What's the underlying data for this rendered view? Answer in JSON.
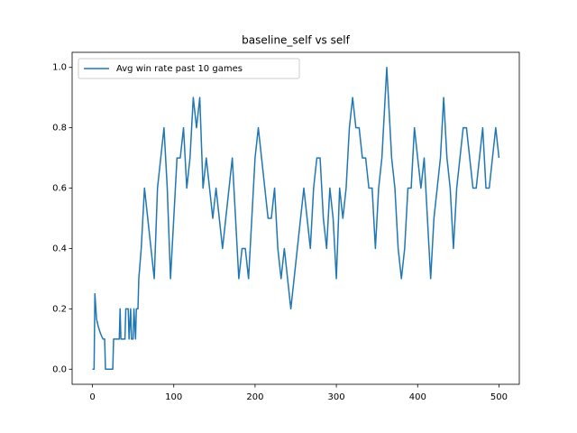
{
  "chart_data": {
    "type": "line",
    "title": "baseline_self vs self",
    "legend": "upper left",
    "x": [
      0,
      2,
      3,
      5,
      7,
      9,
      11,
      13,
      15,
      16,
      25,
      26,
      33,
      34,
      35,
      40,
      41,
      44,
      45,
      47,
      48,
      50,
      51,
      53,
      54,
      56,
      57,
      60,
      64,
      68,
      72,
      76,
      80,
      84,
      88,
      92,
      96,
      100,
      104,
      108,
      112,
      116,
      120,
      124,
      128,
      132,
      136,
      140,
      144,
      148,
      152,
      156,
      160,
      164,
      168,
      172,
      176,
      180,
      184,
      188,
      192,
      196,
      200,
      204,
      208,
      212,
      216,
      220,
      224,
      228,
      232,
      236,
      240,
      244,
      248,
      252,
      256,
      260,
      264,
      268,
      272,
      276,
      280,
      284,
      288,
      292,
      296,
      300,
      304,
      308,
      312,
      316,
      320,
      324,
      328,
      332,
      336,
      340,
      344,
      348,
      352,
      356,
      360,
      362,
      364,
      368,
      372,
      376,
      380,
      384,
      388,
      392,
      396,
      400,
      404,
      408,
      412,
      416,
      420,
      424,
      428,
      432,
      436,
      440,
      444,
      448,
      452,
      456,
      460,
      464,
      468,
      472,
      476,
      480,
      484,
      488,
      492,
      496,
      500
    ],
    "series": [
      {
        "name": "Avg win rate past 10 games",
        "color": "#1f77b4",
        "values": [
          0,
          0,
          0.25,
          0.1667,
          0.1429,
          0.125,
          0.1111,
          0.1,
          0.1,
          0,
          0,
          0.1,
          0.1,
          0.2,
          0.1,
          0.1,
          0.2,
          0.2,
          0.1,
          0.2,
          0.1,
          0.1,
          0.2,
          0.1,
          0.2,
          0.2,
          0.3,
          0.4,
          0.6,
          0.5,
          0.4,
          0.3,
          0.6,
          0.7,
          0.8,
          0.6,
          0.3,
          0.5,
          0.7,
          0.7,
          0.8,
          0.6,
          0.7,
          0.9,
          0.8,
          0.9,
          0.6,
          0.7,
          0.6,
          0.5,
          0.6,
          0.5,
          0.4,
          0.5,
          0.6,
          0.7,
          0.5,
          0.3,
          0.4,
          0.4,
          0.3,
          0.5,
          0.7,
          0.8,
          0.7,
          0.6,
          0.5,
          0.5,
          0.6,
          0.4,
          0.3,
          0.4,
          0.3,
          0.2,
          0.3,
          0.4,
          0.5,
          0.6,
          0.5,
          0.4,
          0.6,
          0.7,
          0.7,
          0.5,
          0.4,
          0.6,
          0.5,
          0.3,
          0.6,
          0.5,
          0.6,
          0.8,
          0.9,
          0.8,
          0.8,
          0.7,
          0.7,
          0.6,
          0.6,
          0.4,
          0.6,
          0.7,
          0.9,
          1.0,
          0.9,
          0.7,
          0.6,
          0.4,
          0.3,
          0.4,
          0.6,
          0.6,
          0.8,
          0.7,
          0.6,
          0.7,
          0.5,
          0.3,
          0.5,
          0.6,
          0.7,
          0.9,
          0.7,
          0.6,
          0.4,
          0.6,
          0.7,
          0.8,
          0.8,
          0.7,
          0.6,
          0.6,
          0.7,
          0.8,
          0.6,
          0.6,
          0.7,
          0.8,
          0.7
        ]
      }
    ],
    "xlim": [
      -25,
      525
    ],
    "xticks": [
      0,
      100,
      200,
      300,
      400,
      500
    ],
    "ylim": [
      -0.05,
      1.05
    ],
    "yticks": [
      {
        "value": 0,
        "label": "0.0"
      },
      {
        "value": 0.2,
        "label": "0.2"
      },
      {
        "value": 0.4,
        "label": "0.4"
      },
      {
        "value": 0.6,
        "label": "0.6"
      },
      {
        "value": 0.8,
        "label": "0.8"
      },
      {
        "value": 1.0,
        "label": "1.0"
      }
    ]
  }
}
